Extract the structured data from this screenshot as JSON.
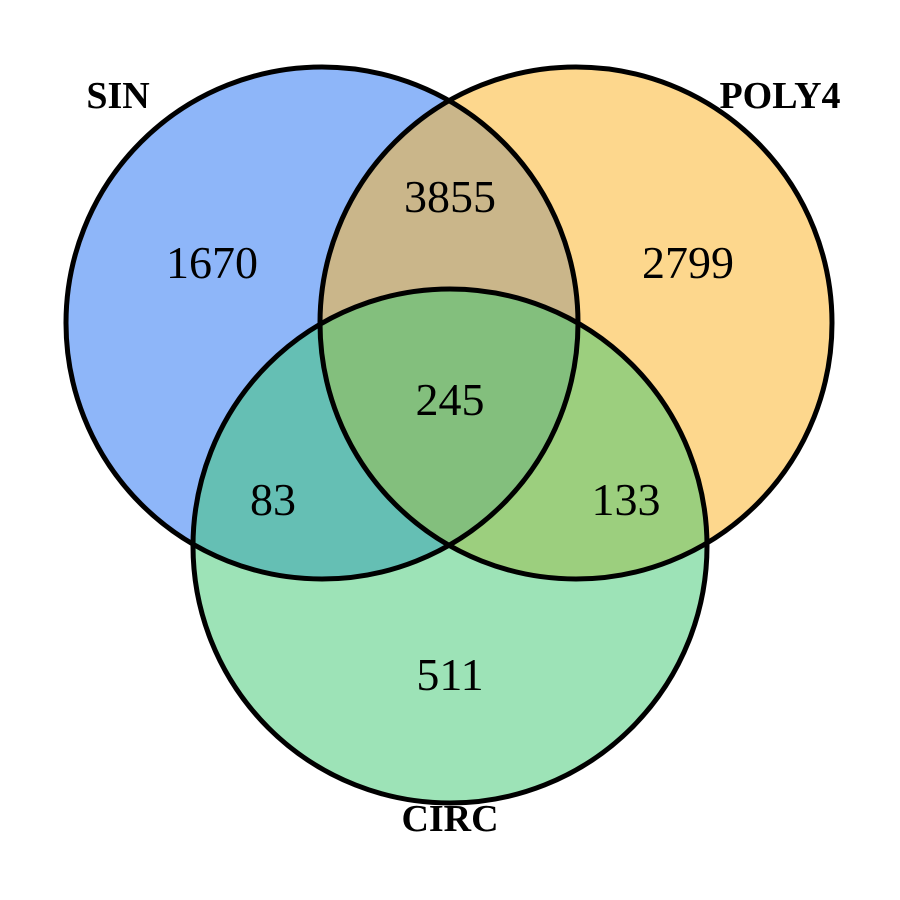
{
  "diagram": {
    "type": "venn-3",
    "sets": [
      {
        "key": "sin",
        "label": "SIN",
        "color": "#3c82f5",
        "fill_opacity": 0.58
      },
      {
        "key": "poly4",
        "label": "POLY4",
        "color": "#fcb72f",
        "fill_opacity": 0.55
      },
      {
        "key": "circ",
        "label": "CIRC",
        "color": "#3bc870",
        "fill_opacity": 0.5
      }
    ],
    "regions": {
      "sin_only": "1670",
      "poly4_only": "2799",
      "circ_only": "511",
      "sin_poly4": "3855",
      "sin_circ": "83",
      "poly4_circ": "133",
      "all_three": "245"
    }
  }
}
